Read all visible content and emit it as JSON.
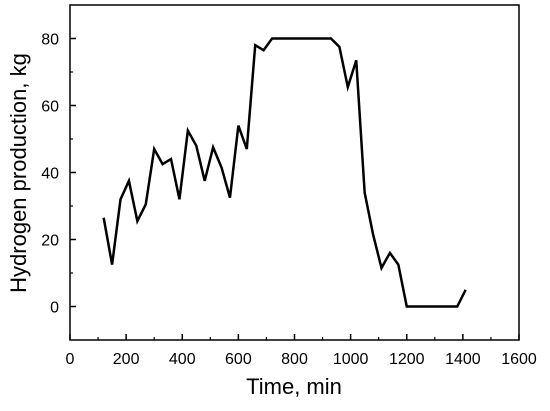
{
  "chart_data": {
    "type": "line",
    "title": "",
    "xlabel": "Time, min",
    "ylabel": "Hydrogen production, kg",
    "xlim": [
      0,
      1600
    ],
    "ylim": [
      -10,
      90
    ],
    "x_ticks": [
      0,
      200,
      400,
      600,
      800,
      1000,
      1200,
      1400,
      1600
    ],
    "y_ticks": [
      0,
      20,
      40,
      60,
      80
    ],
    "x_tick_labels": [
      "0",
      "200",
      "400",
      "600",
      "800",
      "1000",
      "1200",
      "1400",
      "1600"
    ],
    "y_tick_labels": [
      "0",
      "20",
      "40",
      "60",
      "80"
    ],
    "grid": false,
    "legend": "none",
    "series": [
      {
        "color": "#000000",
        "x": [
          120,
          150,
          180,
          210,
          240,
          270,
          300,
          330,
          360,
          390,
          420,
          450,
          480,
          510,
          540,
          570,
          600,
          630,
          660,
          690,
          720,
          750,
          780,
          810,
          840,
          870,
          900,
          930,
          960,
          990,
          1020,
          1050,
          1080,
          1110,
          1140,
          1170,
          1200,
          1230,
          1260,
          1290,
          1320,
          1350,
          1380,
          1410
        ],
        "y": [
          26.5,
          12.5,
          32,
          37.5,
          25.5,
          30.5,
          47,
          42.5,
          44,
          32,
          52.5,
          48,
          37.5,
          47.5,
          41.5,
          32.5,
          54,
          47,
          78,
          76.5,
          80,
          80,
          80,
          80,
          80,
          80,
          80,
          80,
          77.5,
          65.5,
          73.5,
          34,
          21.5,
          11.5,
          16,
          12.5,
          0,
          0,
          0,
          0,
          0,
          0,
          0,
          5
        ]
      }
    ]
  }
}
